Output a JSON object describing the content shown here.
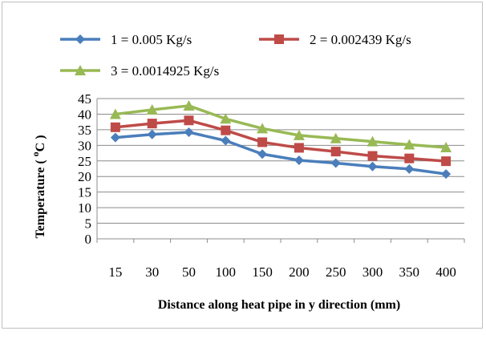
{
  "chart_data": {
    "type": "line",
    "title": "",
    "xlabel": "Distance along heat pipe in y direction (mm)",
    "ylabel": "Temperature ( oC )",
    "ylabel_parts": {
      "prefix": "Temperature ( ",
      "superscript": "o",
      "suffix": "C )"
    },
    "categories": [
      "15",
      "30",
      "50",
      "100",
      "150",
      "200",
      "250",
      "300",
      "350",
      "400"
    ],
    "ylim": [
      0,
      45
    ],
    "yticks": [
      0,
      5,
      10,
      15,
      20,
      25,
      30,
      35,
      40,
      45
    ],
    "grid": "horizontal",
    "legend_position": "top",
    "series": [
      {
        "name": "1 = 0.005 Kg/s",
        "color": "#4a7ebb",
        "marker": "diamond",
        "values": [
          32.5,
          33.5,
          34.2,
          31.5,
          27.2,
          25.2,
          24.3,
          23.2,
          22.4,
          20.8
        ]
      },
      {
        "name": "2 = 0.002439 Kg/s",
        "color": "#be4b48",
        "marker": "square",
        "values": [
          35.8,
          37.0,
          38.0,
          34.8,
          31.0,
          29.2,
          28.0,
          26.6,
          25.8,
          24.9
        ]
      },
      {
        "name": "3 = 0.0014925 Kg/s",
        "color": "#98b954",
        "marker": "triangle",
        "values": [
          40.0,
          41.4,
          42.7,
          38.5,
          35.4,
          33.2,
          32.2,
          31.2,
          30.2,
          29.3
        ]
      }
    ]
  }
}
